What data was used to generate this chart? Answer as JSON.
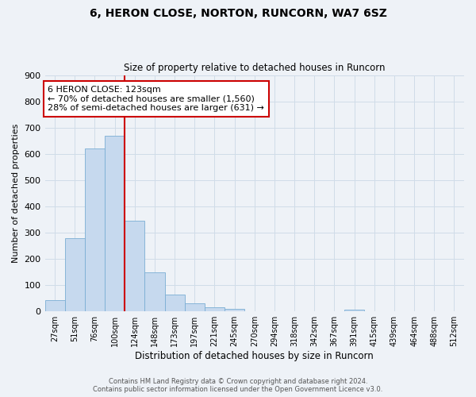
{
  "title": "6, HERON CLOSE, NORTON, RUNCORN, WA7 6SZ",
  "subtitle": "Size of property relative to detached houses in Runcorn",
  "xlabel": "Distribution of detached houses by size in Runcorn",
  "ylabel": "Number of detached properties",
  "bin_labels": [
    "27sqm",
    "51sqm",
    "76sqm",
    "100sqm",
    "124sqm",
    "148sqm",
    "173sqm",
    "197sqm",
    "221sqm",
    "245sqm",
    "270sqm",
    "294sqm",
    "318sqm",
    "342sqm",
    "367sqm",
    "391sqm",
    "415sqm",
    "439sqm",
    "464sqm",
    "488sqm",
    "512sqm"
  ],
  "bar_heights": [
    43,
    278,
    621,
    669,
    346,
    148,
    65,
    30,
    16,
    10,
    0,
    0,
    0,
    0,
    0,
    8,
    0,
    0,
    0,
    0,
    0
  ],
  "bar_color": "#c6d9ee",
  "bar_edge_color": "#7aaed4",
  "grid_color": "#d0dce8",
  "background_color": "#eef2f7",
  "vline_x_bin": 4,
  "vline_color": "#cc0000",
  "annotation_title": "6 HERON CLOSE: 123sqm",
  "annotation_line1": "← 70% of detached houses are smaller (1,560)",
  "annotation_line2": "28% of semi-detached houses are larger (631) →",
  "annotation_box_edgecolor": "#cc0000",
  "ylim": [
    0,
    900
  ],
  "yticks": [
    0,
    100,
    200,
    300,
    400,
    500,
    600,
    700,
    800,
    900
  ],
  "footer_line1": "Contains HM Land Registry data © Crown copyright and database right 2024.",
  "footer_line2": "Contains public sector information licensed under the Open Government Licence v3.0."
}
